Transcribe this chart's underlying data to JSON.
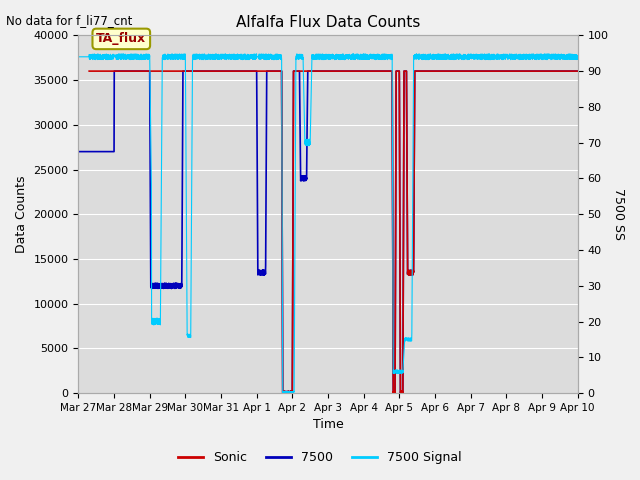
{
  "title": "Alfalfa Flux Data Counts",
  "top_left_text": "No data for f_li77_cnt",
  "legend_box_text": "TA_flux",
  "xlabel": "Time",
  "ylabel_left": "Data Counts",
  "ylabel_right": "7500 SS",
  "ylim_left": [
    0,
    40000
  ],
  "ylim_right": [
    0,
    100
  ],
  "xtick_labels": [
    "Mar 27",
    "Mar 28",
    "Mar 29",
    "Mar 30",
    "Mar 31",
    "Apr 1",
    "Apr 2",
    "Apr 3",
    "Apr 4",
    "Apr 5",
    "Apr 6",
    "Apr 7",
    "Apr 8",
    "Apr 9",
    "Apr 10"
  ],
  "yticks_left": [
    0,
    5000,
    10000,
    15000,
    20000,
    25000,
    30000,
    35000,
    40000
  ],
  "yticks_right": [
    0,
    10,
    20,
    30,
    40,
    50,
    60,
    70,
    80,
    90,
    100
  ],
  "sonic_color": "#cc0000",
  "blue7500_color": "#0000bb",
  "signal_color": "#00ccff",
  "plot_bg_color": "#dcdcdc",
  "fig_bg_color": "#f0f0f0",
  "grid_color": "#ffffff",
  "legend_entries": [
    "Sonic",
    "7500",
    "7500 Signal"
  ]
}
